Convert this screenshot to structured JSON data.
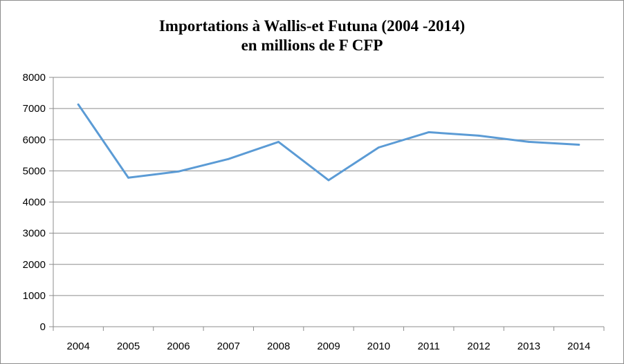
{
  "chart_data": {
    "type": "line",
    "title": "Importations à Wallis-et Futuna (2004 -2014)",
    "subtitle": "en millions de F CFP",
    "xlabel": "",
    "ylabel": "",
    "categories": [
      "2004",
      "2005",
      "2006",
      "2007",
      "2008",
      "2009",
      "2010",
      "2011",
      "2012",
      "2013",
      "2014"
    ],
    "series": [
      {
        "values": [
          7130,
          4780,
          4980,
          5380,
          5930,
          4700,
          5750,
          6240,
          6130,
          5930,
          5840
        ]
      }
    ],
    "ylim": [
      0,
      8000
    ],
    "yticks": [
      "0",
      "1000",
      "2000",
      "3000",
      "4000",
      "5000",
      "6000",
      "7000",
      "8000"
    ],
    "grid": true,
    "legend": "none",
    "colors": {
      "line": "#5b9bd5",
      "grid": "#8c8c8c",
      "axis": "#8c8c8c"
    }
  }
}
